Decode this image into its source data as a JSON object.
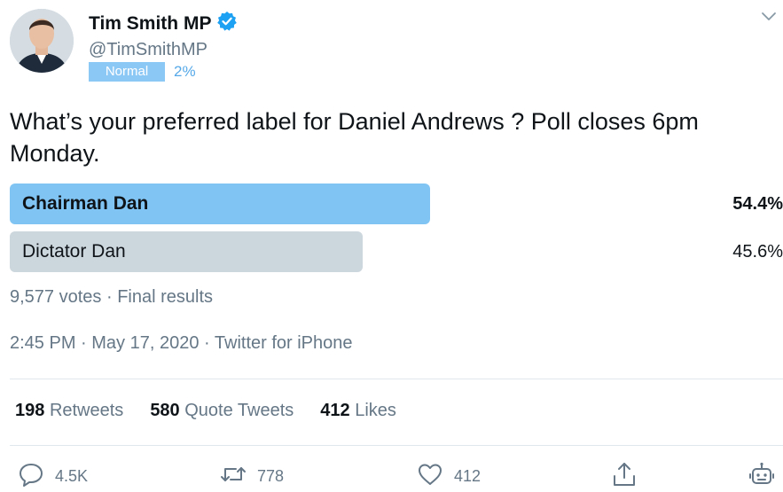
{
  "author": {
    "name": "Tim Smith MP",
    "handle": "@TimSmithMP",
    "badge": "Normal",
    "badge_pct": "2%"
  },
  "tweet": {
    "text": "What’s your preferred label for Daniel Andrews ? Poll closes 6pm Monday."
  },
  "poll": {
    "options": [
      {
        "label": "Chairman Dan",
        "pct_text": "54.4%",
        "value": 54.4,
        "winner": true
      },
      {
        "label": "Dictator Dan",
        "pct_text": "45.6%",
        "value": 45.6,
        "winner": false
      }
    ],
    "votes": "9,577 votes",
    "status": "Final results"
  },
  "meta": {
    "time": "2:45 PM",
    "date": "May 17, 2020",
    "source": "Twitter for iPhone"
  },
  "stats": {
    "retweets_count": "198",
    "retweets_label": "Retweets",
    "quotes_count": "580",
    "quotes_label": "Quote Tweets",
    "likes_count": "412",
    "likes_label": "Likes"
  },
  "actions": {
    "reply_count": "4.5K",
    "retweet_count": "778",
    "like_count": "412"
  },
  "icons": [
    "verified-icon",
    "chevron-down-icon",
    "reply-icon",
    "retweet-icon",
    "like-icon",
    "share-icon",
    "bot-icon"
  ],
  "colors": {
    "accent": "#1da1f2",
    "winner_bar": "#7fc4f3",
    "loser_bar": "#ccd6dd",
    "muted_text": "#657786",
    "badge": "#8cc8f5"
  }
}
